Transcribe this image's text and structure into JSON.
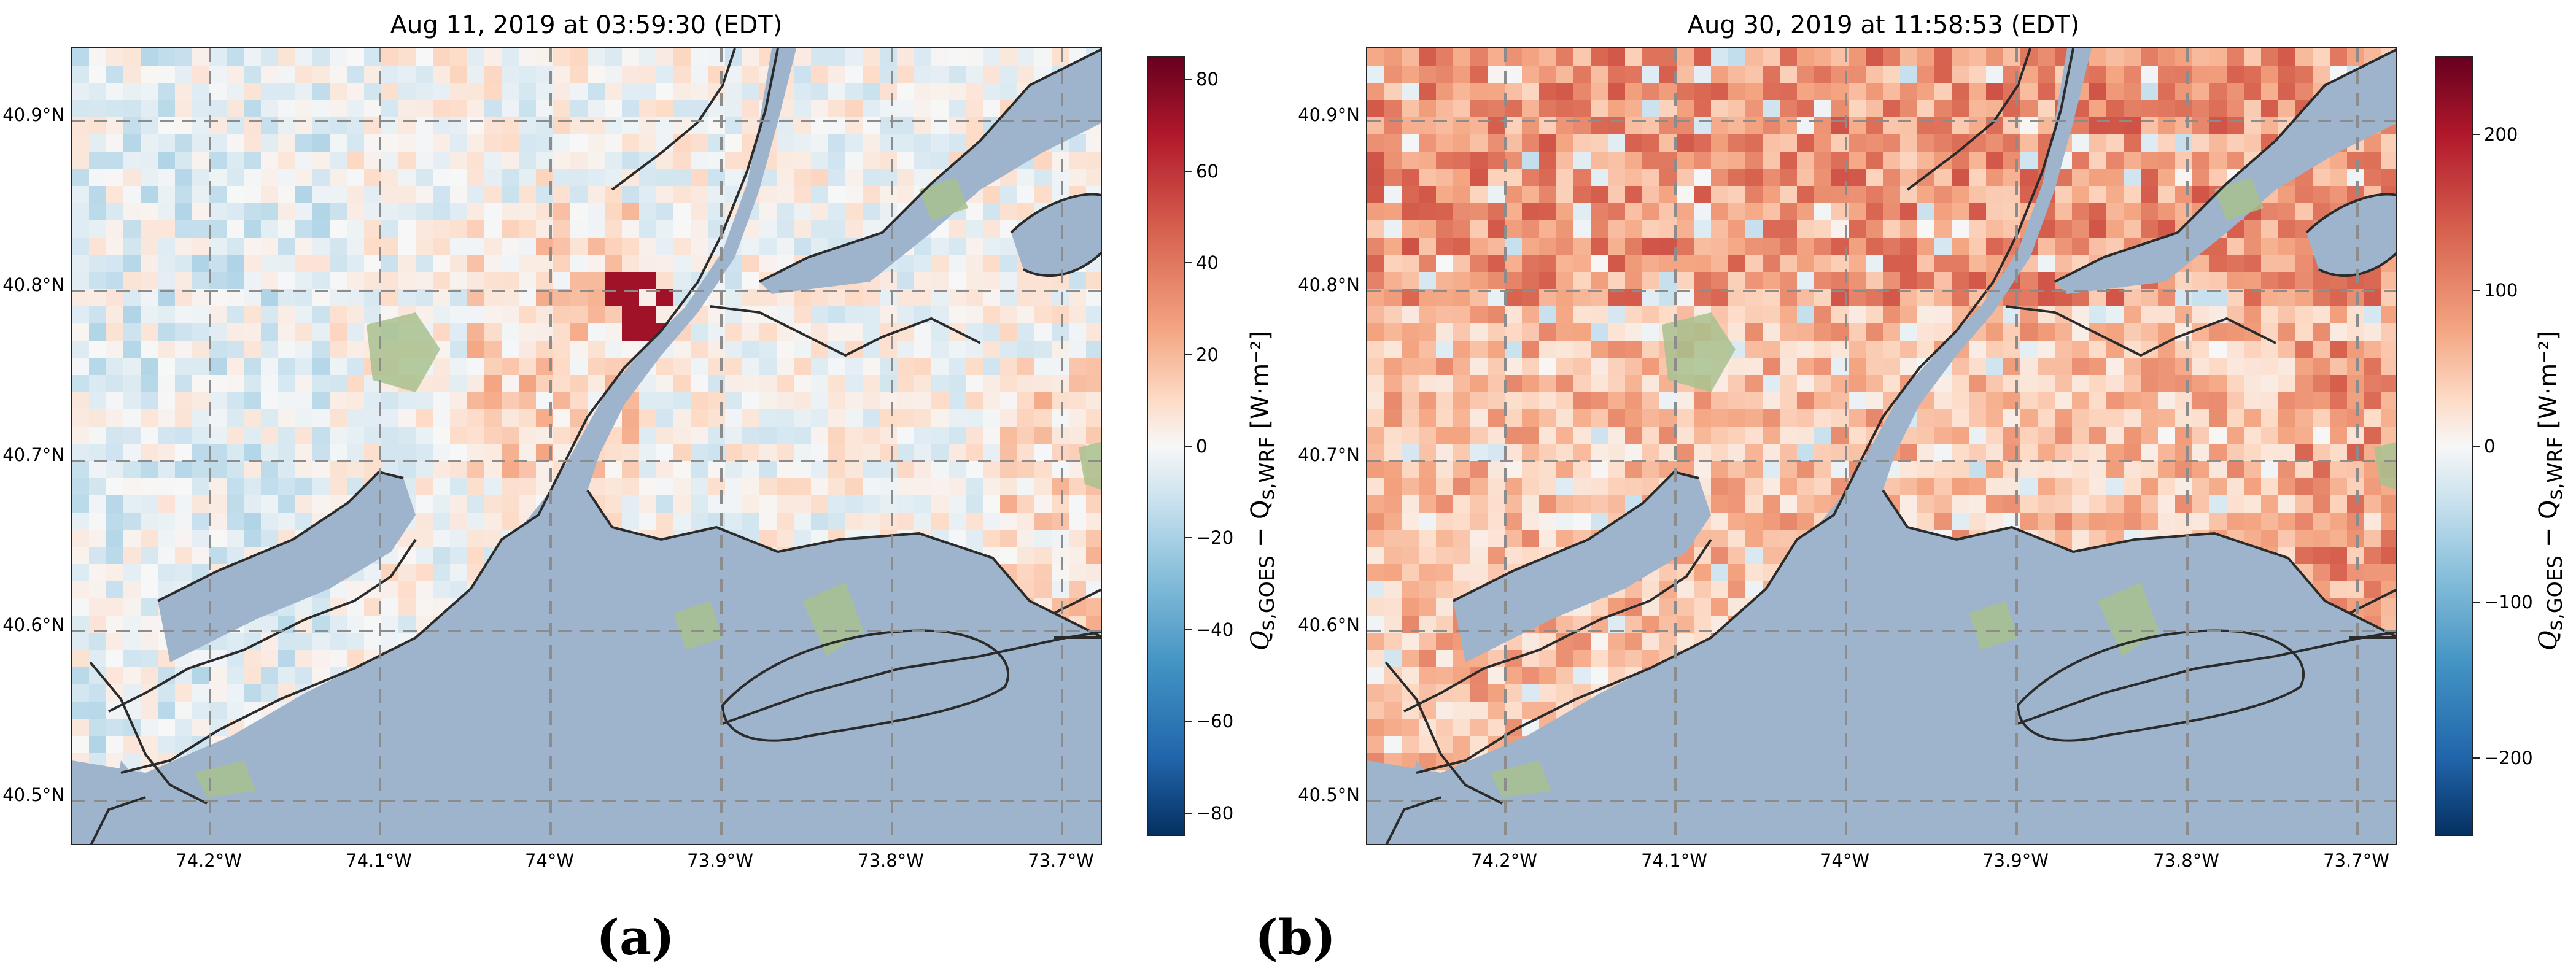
{
  "panels": [
    {
      "title": "Aug 11, 2019 at 03:59:30 (EDT)",
      "label": "(a)",
      "lat_labels": [
        "40.9°N",
        "40.8°N",
        "40.7°N",
        "40.6°N",
        "40.5°N"
      ],
      "lon_labels": [
        "74.2°W",
        "74.1°W",
        "74°W",
        "73.9°W",
        "73.8°W",
        "73.7°W"
      ],
      "colorbar": {
        "label": "Q_{s,GOES} − Q_{s,WRF} [W·m⁻²]",
        "label_main": "Q",
        "label_sub1": "s,GOES",
        "label_mid": " − Q",
        "label_sub2": "s,WRF",
        "label_units": " [W·m⁻²]",
        "range": [
          -85,
          85
        ],
        "ticks": [
          "80",
          "60",
          "40",
          "20",
          "0",
          "−20",
          "−40",
          "−60",
          "−80"
        ]
      },
      "bias": "neutral"
    },
    {
      "title": "Aug 30, 2019 at 11:58:53 (EDT)",
      "label": "(b)",
      "lat_labels": [
        "40.9°N",
        "40.8°N",
        "40.7°N",
        "40.6°N",
        "40.5°N"
      ],
      "lon_labels": [
        "74.2°W",
        "74.1°W",
        "74°W",
        "73.9°W",
        "73.8°W",
        "73.7°W"
      ],
      "colorbar": {
        "label": "Q_{s,GOES} − Q_{s,WRF} [W·m⁻²]",
        "label_main": "Q",
        "label_sub1": "s,GOES",
        "label_mid": " − Q",
        "label_sub2": "s,WRF",
        "label_units": " [W·m⁻²]",
        "range": [
          -250,
          250
        ],
        "ticks": [
          "200",
          "100",
          "0",
          "−100",
          "−200"
        ]
      },
      "bias": "positive"
    }
  ],
  "colors": {
    "water": "#9db4cc",
    "coast": "#2b2b2b",
    "grid": "#8c8c8c",
    "park": "#a8c18e",
    "diverging": [
      "#053061",
      "#2166ac",
      "#4393c3",
      "#92c5de",
      "#d1e5f0",
      "#f7f7f7",
      "#fddbc7",
      "#f4a582",
      "#d6604d",
      "#b2182b",
      "#67001f"
    ]
  }
}
